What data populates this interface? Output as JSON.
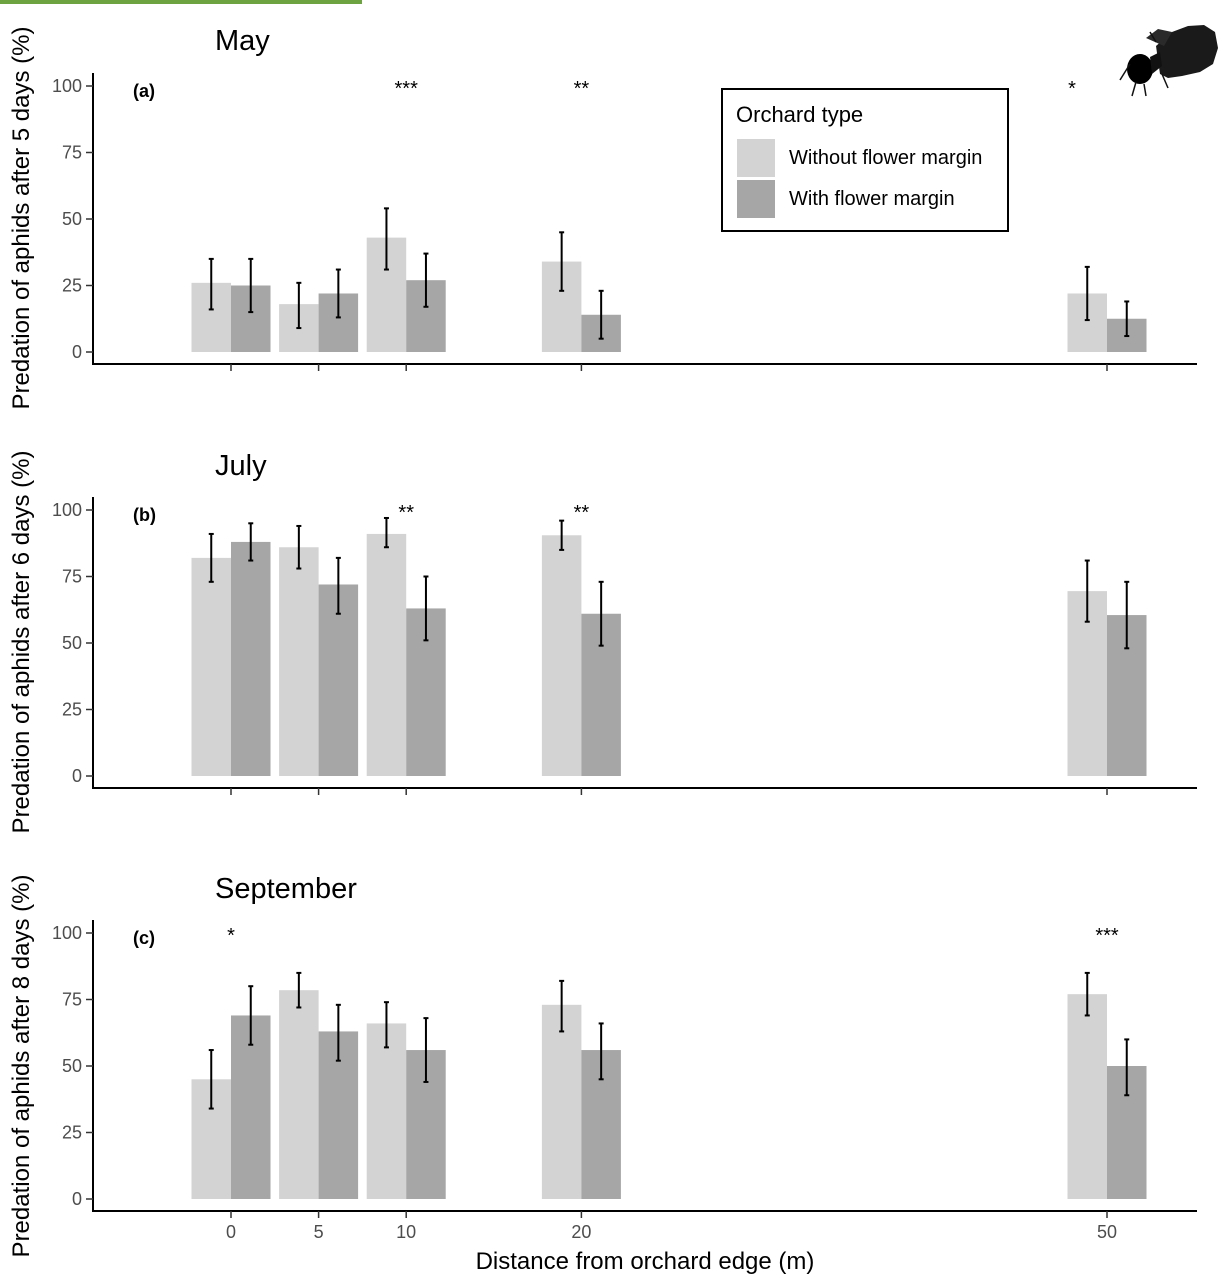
{
  "colors": {
    "without": "#d3d3d3",
    "with": "#a6a6a6",
    "accent_bar": "#6ea342"
  },
  "chart_data": [
    {
      "type": "bar",
      "title": "May",
      "panel": "(a)",
      "ylabel": "Predation of aphids after 5 days (%)",
      "xlabel": "",
      "x": [
        0,
        5,
        10,
        20,
        50
      ],
      "yticks": [
        0,
        25,
        50,
        75,
        100
      ],
      "ylim": [
        0,
        100
      ],
      "significance": [
        "",
        "",
        "***",
        "**",
        "*"
      ],
      "series": [
        {
          "name": "Without flower margin",
          "values": [
            26,
            18,
            43,
            34,
            22
          ],
          "err_low": [
            16,
            9,
            31,
            23,
            12
          ],
          "err_high": [
            35,
            26,
            54,
            45,
            32
          ]
        },
        {
          "name": "With flower margin",
          "values": [
            25,
            22,
            27,
            14,
            12.5
          ],
          "err_low": [
            15,
            13,
            17,
            5,
            6
          ],
          "err_high": [
            35,
            31,
            37,
            23,
            19
          ]
        }
      ]
    },
    {
      "type": "bar",
      "title": "July",
      "panel": "(b)",
      "ylabel": "Predation of aphids after 6 days (%)",
      "xlabel": "",
      "x": [
        0,
        5,
        10,
        20,
        50
      ],
      "yticks": [
        0,
        25,
        50,
        75,
        100
      ],
      "ylim": [
        0,
        100
      ],
      "significance": [
        "",
        "",
        "**",
        "**",
        ""
      ],
      "series": [
        {
          "name": "Without flower margin",
          "values": [
            82,
            86,
            91,
            90.5,
            69.5
          ],
          "err_low": [
            73,
            78,
            86,
            85,
            58
          ],
          "err_high": [
            91,
            94,
            97,
            96,
            81
          ]
        },
        {
          "name": "With flower margin",
          "values": [
            88,
            72,
            63,
            61,
            60.5
          ],
          "err_low": [
            81,
            61,
            51,
            49,
            48
          ],
          "err_high": [
            95,
            82,
            75,
            73,
            73
          ]
        }
      ]
    },
    {
      "type": "bar",
      "title": "September",
      "panel": "(c)",
      "ylabel": "Predation of aphids after 8 days (%)",
      "xlabel": "Distance from orchard edge (m)",
      "x": [
        0,
        5,
        10,
        20,
        50
      ],
      "yticks": [
        0,
        25,
        50,
        75,
        100
      ],
      "ylim": [
        0,
        100
      ],
      "significance": [
        "*",
        "",
        "",
        "",
        "***"
      ],
      "series": [
        {
          "name": "Without flower margin",
          "values": [
            45,
            78.5,
            66,
            73,
            77
          ],
          "err_low": [
            34,
            72,
            57,
            63,
            69
          ],
          "err_high": [
            56,
            85,
            74,
            82,
            85
          ]
        },
        {
          "name": "With flower margin",
          "values": [
            69,
            63,
            56,
            56,
            50
          ],
          "err_low": [
            58,
            52,
            44,
            45,
            39
          ],
          "err_high": [
            80,
            73,
            68,
            66,
            60
          ]
        }
      ]
    }
  ],
  "legend": {
    "title": "Orchard type",
    "items": [
      {
        "label": "Without flower margin",
        "color": "#d3d3d3"
      },
      {
        "label": "With flower margin",
        "color": "#a6a6a6"
      }
    ]
  },
  "icons": {
    "insect": "ladybird-larva-silhouette-icon"
  }
}
